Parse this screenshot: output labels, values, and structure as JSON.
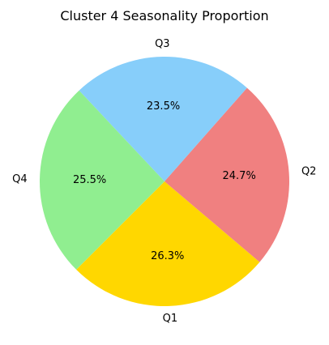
{
  "chart_data": {
    "type": "pie",
    "title": "Cluster 4 Seasonality Proportion",
    "start_angle_deg": 225,
    "direction": "counterclockwise",
    "slices": [
      {
        "label": "Q1",
        "value": 26.3,
        "pct_label": "26.3%",
        "color": "#FFD700"
      },
      {
        "label": "Q2",
        "value": 24.7,
        "pct_label": "24.7%",
        "color": "#F08080"
      },
      {
        "label": "Q3",
        "value": 23.5,
        "pct_label": "23.5%",
        "color": "#87CEFA"
      },
      {
        "label": "Q4",
        "value": 25.5,
        "pct_label": "25.5%",
        "color": "#90EE90"
      }
    ]
  }
}
